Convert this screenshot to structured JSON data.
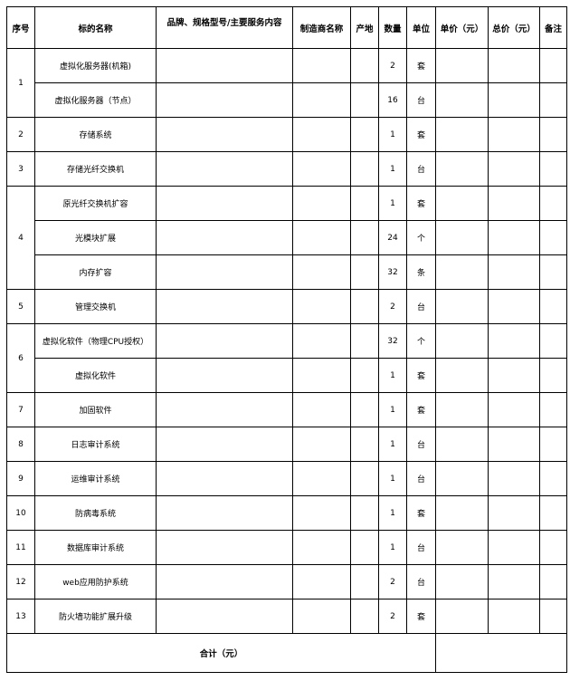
{
  "headers": [
    "序号",
    "标的名称",
    "品牌、规格型号/主要服务内容",
    "制造商名称",
    "产地",
    "数量",
    "单位",
    "单价（元）",
    "总价（元）",
    "备注"
  ],
  "groups": [
    {
      "no": "1",
      "items": [
        {
          "name": "虚拟化服务器(机箱)",
          "qty": "2",
          "unit": "套"
        },
        {
          "name": "虚拟化服务器（节点）",
          "qty": "16",
          "unit": "台"
        }
      ]
    },
    {
      "no": "2",
      "items": [
        {
          "name": "存储系统",
          "qty": "1",
          "unit": "套"
        }
      ]
    },
    {
      "no": "3",
      "items": [
        {
          "name": "存储光纤交换机",
          "qty": "1",
          "unit": "台"
        }
      ]
    },
    {
      "no": "4",
      "items": [
        {
          "name": "原光纤交换机扩容",
          "qty": "1",
          "unit": "套"
        },
        {
          "name": "光模块扩展",
          "qty": "24",
          "unit": "个"
        },
        {
          "name": "内存扩容",
          "qty": "32",
          "unit": "条"
        }
      ]
    },
    {
      "no": "5",
      "items": [
        {
          "name": "管理交换机",
          "qty": "2",
          "unit": "台"
        }
      ]
    },
    {
      "no": "6",
      "items": [
        {
          "name": "虚拟化软件（物理CPU授权）",
          "qty": "32",
          "unit": "个"
        },
        {
          "name": "虚拟化软件",
          "qty": "1",
          "unit": "套"
        }
      ]
    },
    {
      "no": "7",
      "items": [
        {
          "name": "加固软件",
          "qty": "1",
          "unit": "套"
        }
      ]
    },
    {
      "no": "8",
      "items": [
        {
          "name": "日志审计系统",
          "qty": "1",
          "unit": "台"
        }
      ]
    },
    {
      "no": "9",
      "items": [
        {
          "name": "运维审计系统",
          "qty": "1",
          "unit": "台"
        }
      ]
    },
    {
      "no": "10",
      "items": [
        {
          "name": "防病毒系统",
          "qty": "1",
          "unit": "套"
        }
      ]
    },
    {
      "no": "11",
      "items": [
        {
          "name": "数据库审计系统",
          "qty": "1",
          "unit": "台"
        }
      ]
    },
    {
      "no": "12",
      "items": [
        {
          "name": "web应用防护系统",
          "qty": "2",
          "unit": "台"
        }
      ]
    },
    {
      "no": "13",
      "items": [
        {
          "name": "防火墙功能扩展升级",
          "qty": "2",
          "unit": "套"
        }
      ]
    }
  ],
  "total": {
    "label": "合计（元）",
    "value": ""
  }
}
